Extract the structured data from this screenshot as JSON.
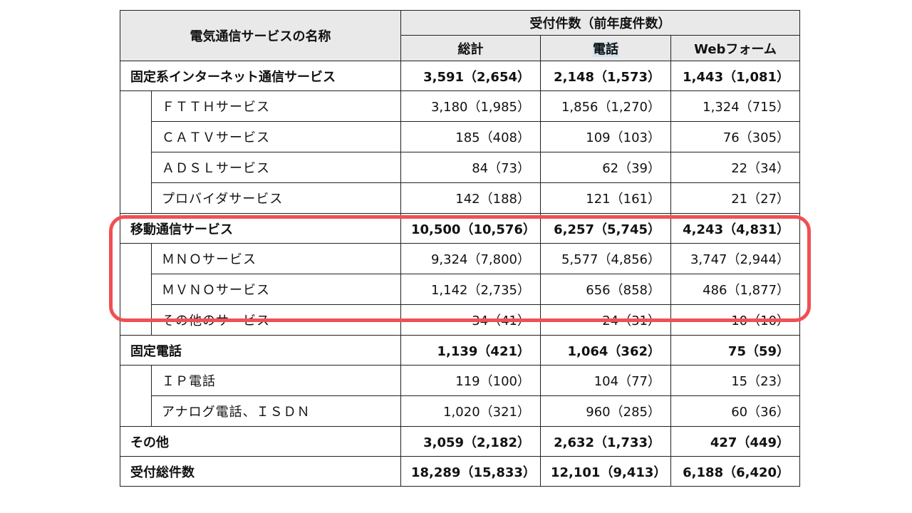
{
  "header": {
    "service_name": "電気通信サービスの名称",
    "group_title": "受付件数（前年度件数）",
    "col_total": "総計",
    "col_phone": "電話",
    "col_web": "Webフォーム"
  },
  "rows": [
    {
      "kind": "category",
      "name": "固定系インターネット通信サービス",
      "total": "3,591（2,654）",
      "phone": "2,148（1,573）",
      "web": "1,443（1,081）"
    },
    {
      "kind": "sub",
      "name": "ＦＴＴＨサービス",
      "total": "3,180（1,985）",
      "phone": "1,856（1,270）",
      "web": "1,324（715）"
    },
    {
      "kind": "sub",
      "name": "ＣＡＴＶサービス",
      "total": "185（408）",
      "phone": "109（103）",
      "web": "76（305）"
    },
    {
      "kind": "sub",
      "name": "ＡＤＳＬサービス",
      "total": "84（73）",
      "phone": "62（39）",
      "web": "22（34）"
    },
    {
      "kind": "sub",
      "name": "プロバイダサービス",
      "total": "142（188）",
      "phone": "121（161）",
      "web": "21（27）"
    },
    {
      "kind": "category",
      "name": "移動通信サービス",
      "total": "10,500（10,576）",
      "phone": "6,257（5,745）",
      "web": "4,243（4,831）"
    },
    {
      "kind": "sub",
      "name": "ＭＮＯサービス",
      "total": "9,324（7,800）",
      "phone": "5,577（4,856）",
      "web": "3,747（2,944）"
    },
    {
      "kind": "sub",
      "name": "ＭＶＮＯサービス",
      "total": "1,142（2,735）",
      "phone": "656（858）",
      "web": "486（1,877）"
    },
    {
      "kind": "sub",
      "name": "その他のサービス",
      "total": "34（41）",
      "phone": "24（31）",
      "web": "10（10）"
    },
    {
      "kind": "category",
      "name": "固定電話",
      "total": "1,139（421）",
      "phone": "1,064（362）",
      "web": "75（59）"
    },
    {
      "kind": "sub",
      "name": "ＩＰ電話",
      "total": "119（100）",
      "phone": "104（77）",
      "web": "15（23）"
    },
    {
      "kind": "sub",
      "name": "アナログ電話、ＩＳＤＮ",
      "total": "1,020（321）",
      "phone": "960（285）",
      "web": "60（36）"
    },
    {
      "kind": "category",
      "name": "その他",
      "total": "3,059（2,182）",
      "phone": "2,632（1,733）",
      "web": "427（449）"
    },
    {
      "kind": "category",
      "name": "受付総件数",
      "total": "18,289（15,833）",
      "phone": "12,101（9,413）",
      "web": "6,188（6,420）"
    }
  ],
  "highlight": {
    "color": "#f05052"
  }
}
